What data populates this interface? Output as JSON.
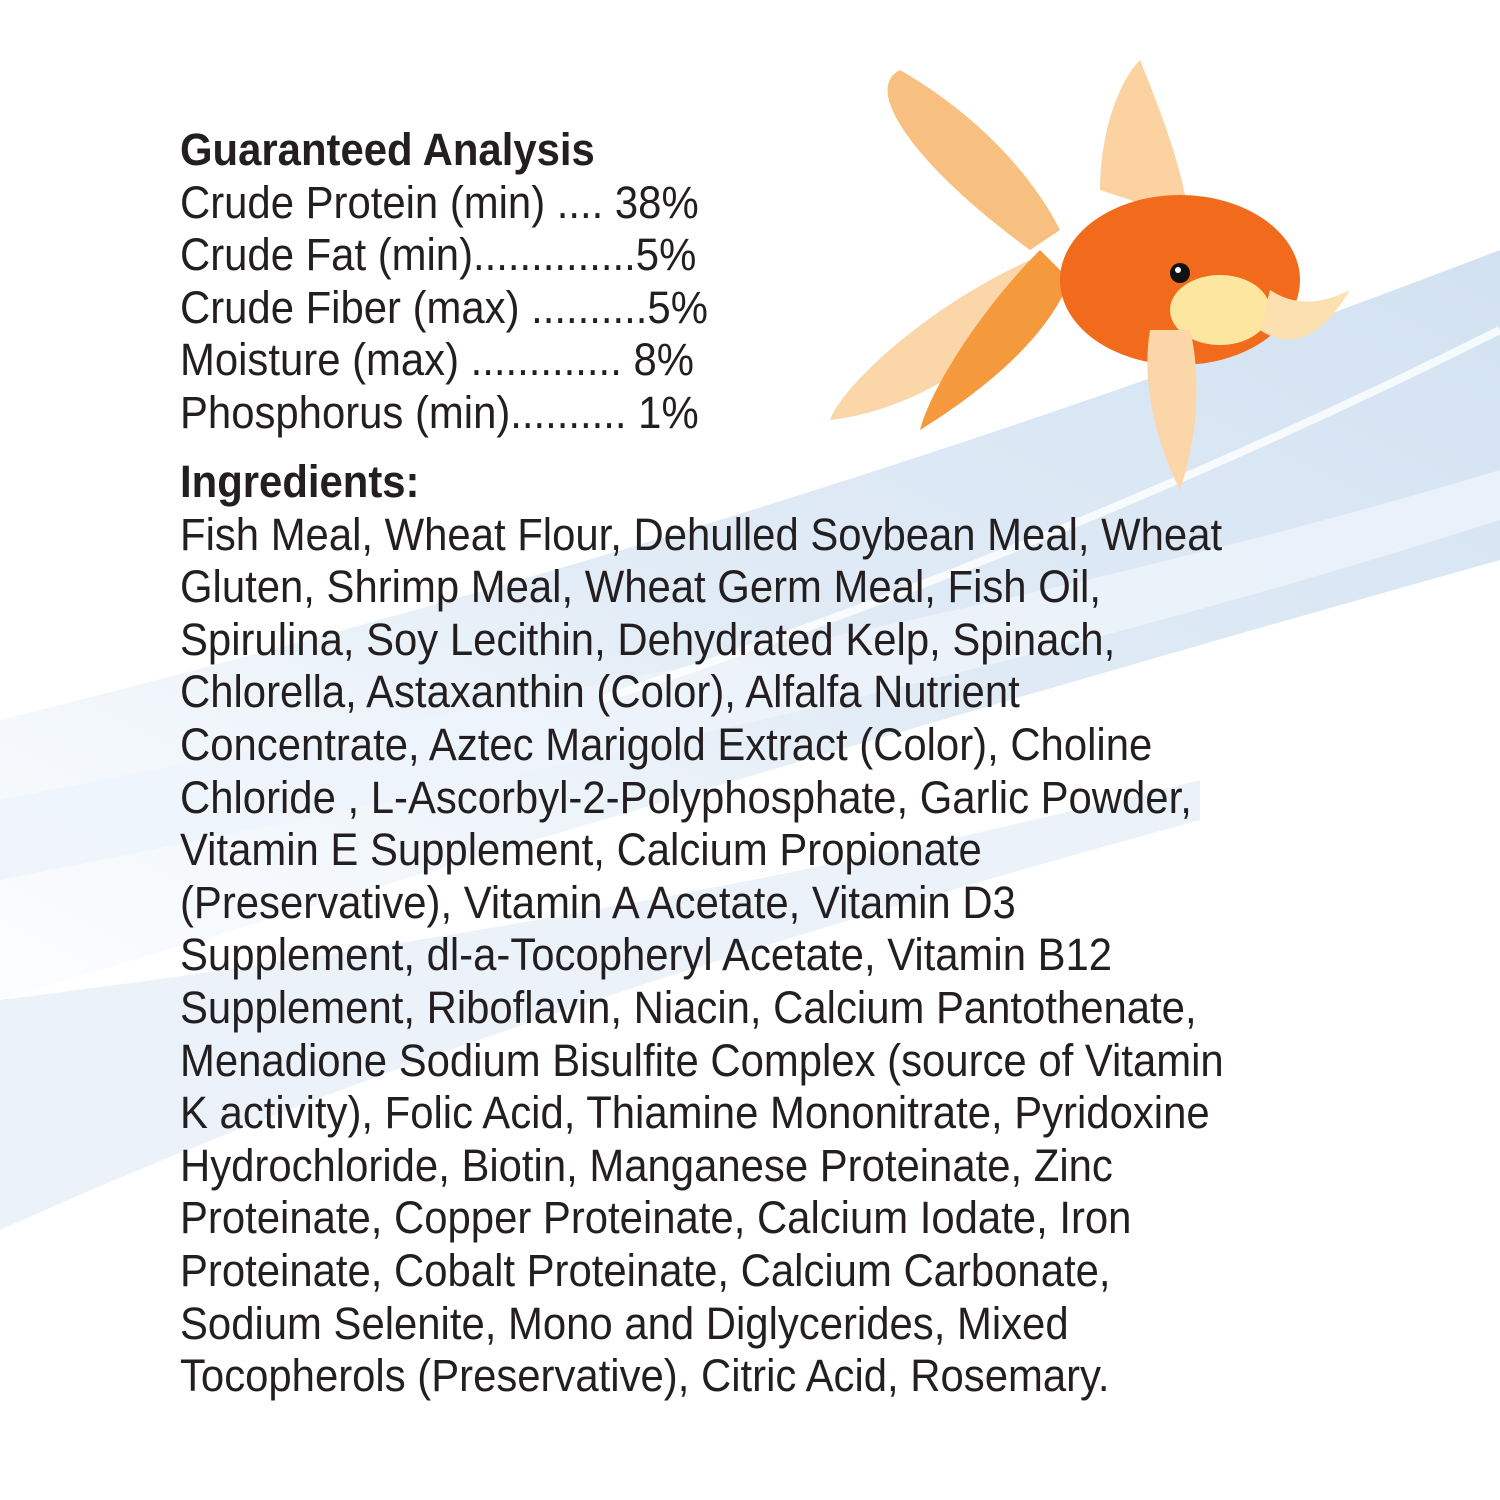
{
  "analysis": {
    "title": "Guaranteed Analysis",
    "rows": [
      "Crude Protein (min) .... 38%",
      "Crude Fat (min)..............5%",
      "Crude Fiber (max) ..........5%",
      "Moisture (max) ............. 8%",
      "Phosphorus (min).......... 1%"
    ]
  },
  "ingredients": {
    "title": "Ingredients:",
    "lines": [
      "Fish Meal, Wheat Flour, Dehulled Soybean Meal, Wheat",
      "Gluten, Shrimp Meal, Wheat Germ Meal, Fish Oil,",
      "Spirulina, Soy Lecithin, Dehydrated Kelp, Spinach,",
      "Chlorella, Astaxanthin (Color), Alfalfa Nutrient",
      "Concentrate, Aztec Marigold Extract (Color), Choline",
      "Chloride , L-Ascorbyl-2-Polyphosphate, Garlic Powder,",
      "Vitamin E Supplement, Calcium Propionate",
      "(Preservative), Vitamin A Acetate, Vitamin D3",
      "Supplement, dl-a-Tocopheryl Acetate, Vitamin B12",
      "Supplement, Riboflavin, Niacin, Calcium Pantothenate,",
      "Menadione Sodium Bisulfite Complex (source of Vitamin",
      "K activity), Folic Acid, Thiamine Mononitrate, Pyridoxine",
      "Hydrochloride, Biotin, Manganese Proteinate, Zinc",
      "Proteinate, Copper Proteinate, Calcium Iodate, Iron",
      "Proteinate, Cobalt Proteinate, Calcium Carbonate,",
      "Sodium Selenite, Mono and Diglycerides, Mixed",
      "Tocopherols (Preservative), Citric Acid, Rosemary."
    ]
  },
  "colors": {
    "text": "#231f20",
    "fish_orange": "#f26a1b",
    "water": "#cfe0f0"
  }
}
